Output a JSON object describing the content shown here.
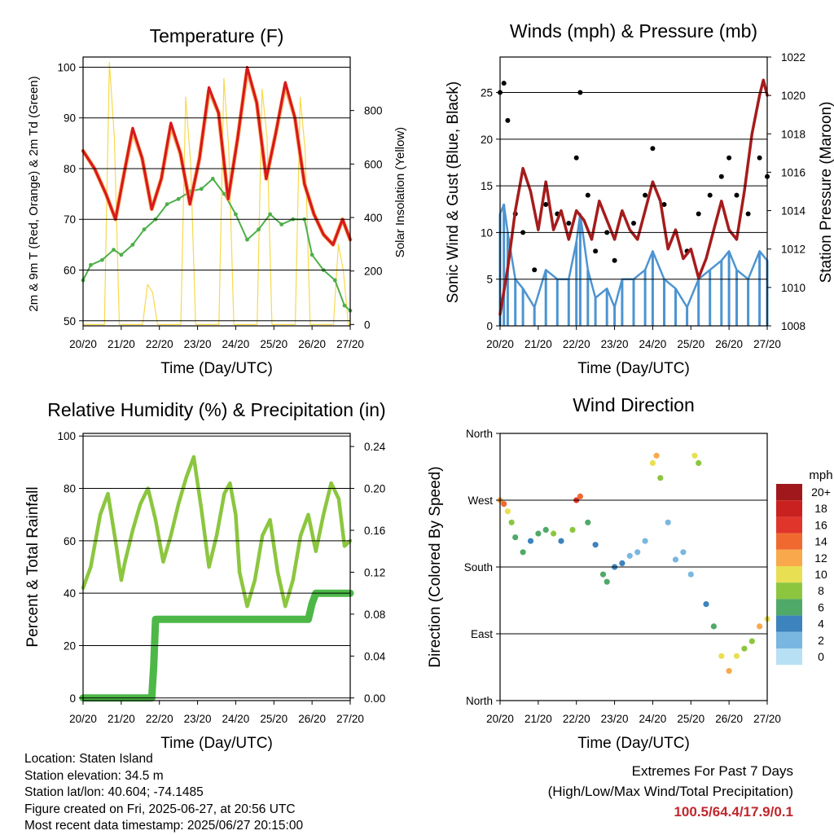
{
  "colors": {
    "temp2m": "#d7191c",
    "temp9m": "#fdae61",
    "dewpoint": "#4daf4a",
    "solar": "#f7d94c",
    "wind": "#4d94d1",
    "gust": "#000000",
    "pressure": "#a51c1c",
    "rh": "#8cc63f",
    "precip": "#4db848",
    "extremes": "#c0272d"
  },
  "panels": {
    "temperature": {
      "title": "Temperature (F)",
      "xlabel": "Time (Day/UTC)",
      "ylabel_left": "2m & 9m T (Red, Orange) & 2m Td (Green)",
      "ylabel_right": "Solar Insolation (Yellow)"
    },
    "winds": {
      "title": "Winds (mph) & Pressure (mb)",
      "xlabel": "Time (Day/UTC)",
      "ylabel_left": "Sonic Wind & Gust (Blue, Black)",
      "ylabel_right": "Station Pressure (Maroon)"
    },
    "humidity": {
      "title": "Relative Humidity (%) & Precipitation (in)",
      "xlabel": "Time (Day/UTC)",
      "ylabel_left": "Percent & Total Rainfall"
    },
    "direction": {
      "title": "Wind Direction",
      "xlabel": "Time (Day/UTC)",
      "ylabel_left": "Direction (Colored By Speed)",
      "legend_title": "mph"
    }
  },
  "chart_data": [
    {
      "type": "line",
      "title": "Temperature (F)",
      "xlabel": "Time (Day/UTC)",
      "ylabel": "2m & 9m T (Red, Orange) & 2m Td (Green)",
      "y2label": "Solar Insolation (Yellow)",
      "x_ticks": [
        "20/20",
        "21/20",
        "22/20",
        "23/20",
        "24/20",
        "25/20",
        "26/20",
        "27/20"
      ],
      "xlim": [
        0,
        7
      ],
      "ylim": [
        49,
        102
      ],
      "y_ticks": [
        50,
        60,
        70,
        80,
        90,
        100
      ],
      "y2lim": [
        -5,
        1000
      ],
      "y2_ticks": [
        0,
        200,
        400,
        600,
        800
      ],
      "grid": "horizontal",
      "series": [
        {
          "name": "2m T",
          "x": [
            0,
            0.3,
            0.6,
            0.85,
            1.1,
            1.3,
            1.55,
            1.8,
            2.05,
            2.3,
            2.55,
            2.8,
            3.05,
            3.3,
            3.55,
            3.8,
            4.05,
            4.3,
            4.55,
            4.8,
            5.05,
            5.3,
            5.55,
            5.8,
            6.05,
            6.3,
            6.55,
            6.8,
            6.9,
            7
          ],
          "y": [
            83.5,
            80,
            75,
            70,
            80,
            88,
            82,
            72,
            78,
            89,
            83,
            73,
            82,
            96,
            91,
            74,
            86,
            100,
            93,
            78,
            87,
            97,
            90,
            77,
            71,
            67,
            65,
            70,
            68,
            66
          ]
        },
        {
          "name": "9m T",
          "x": [
            0,
            0.3,
            0.6,
            0.85,
            1.1,
            1.3,
            1.55,
            1.8,
            2.05,
            2.3,
            2.55,
            2.8,
            3.05,
            3.3,
            3.55,
            3.8,
            4.05,
            4.3,
            4.55,
            4.8,
            5.05,
            5.3,
            5.55,
            5.8,
            6.05,
            6.3,
            6.55,
            6.8,
            6.9,
            7
          ],
          "y": [
            83.5,
            80,
            75,
            70,
            80,
            87.5,
            82,
            72,
            78,
            88.5,
            83,
            73,
            82,
            95.5,
            91,
            74,
            86,
            99.5,
            93,
            78,
            87,
            96.5,
            90,
            77,
            71,
            67,
            65,
            70,
            68,
            66
          ]
        },
        {
          "name": "2m Td",
          "x": [
            0,
            0.2,
            0.5,
            0.8,
            1.0,
            1.3,
            1.6,
            1.9,
            2.2,
            2.5,
            2.8,
            3.1,
            3.4,
            3.7,
            4.0,
            4.3,
            4.6,
            4.9,
            5.2,
            5.5,
            5.8,
            6.0,
            6.3,
            6.6,
            6.85,
            7
          ],
          "y": [
            58,
            61,
            62,
            64,
            63,
            65,
            68,
            70,
            73,
            74,
            75.5,
            76,
            78,
            75,
            71,
            66,
            68,
            71,
            69,
            70,
            70,
            63,
            60,
            58,
            53,
            52
          ]
        },
        {
          "name": "Solar Insolation",
          "axis": "y2",
          "x": [
            0,
            0.56,
            0.69,
            0.82,
            0.95,
            1.56,
            1.69,
            1.82,
            1.95,
            2.56,
            2.69,
            2.82,
            2.95,
            3.56,
            3.69,
            3.82,
            3.95,
            4.56,
            4.69,
            4.82,
            4.95,
            5.56,
            5.69,
            5.82,
            5.95,
            6.56,
            6.69,
            6.82,
            6.95,
            7
          ],
          "y": [
            0,
            0,
            980,
            700,
            0,
            0,
            150,
            120,
            0,
            0,
            850,
            600,
            0,
            0,
            920,
            650,
            0,
            0,
            880,
            700,
            0,
            0,
            850,
            650,
            0,
            0,
            300,
            200,
            0,
            0
          ]
        }
      ]
    },
    {
      "type": "scatter",
      "title": "Winds (mph) & Pressure (mb)",
      "xlabel": "Time (Day/UTC)",
      "ylabel": "Sonic Wind & Gust (Blue, Black)",
      "y2label": "Station Pressure (Maroon)",
      "x_ticks": [
        "20/20",
        "21/20",
        "22/20",
        "23/20",
        "24/20",
        "25/20",
        "26/20",
        "27/20"
      ],
      "xlim": [
        0,
        7
      ],
      "ylim": [
        0,
        28.8
      ],
      "y_ticks": [
        0,
        5,
        10,
        15,
        20,
        25
      ],
      "y2lim": [
        1008,
        1022
      ],
      "y2_ticks": [
        1008,
        1010,
        1012,
        1014,
        1016,
        1018,
        1020,
        1022
      ],
      "grid": "horizontal",
      "series": [
        {
          "name": "Gust",
          "x": [
            0,
            0.1,
            0.2,
            0.4,
            0.6,
            0.9,
            1.2,
            1.5,
            1.8,
            2.0,
            2.1,
            2.3,
            2.5,
            2.8,
            3.0,
            3.2,
            3.5,
            3.8,
            4.0,
            4.3,
            4.6,
            4.9,
            5.2,
            5.5,
            5.8,
            6.0,
            6.2,
            6.5,
            6.8,
            7
          ],
          "y": [
            25,
            26,
            22,
            12,
            10,
            6,
            13,
            12,
            11,
            18,
            25,
            14,
            8,
            10,
            7,
            12,
            11,
            14,
            19,
            13,
            10,
            8,
            12,
            14,
            16,
            18,
            14,
            12,
            18,
            16
          ]
        },
        {
          "name": "Sonic Wind",
          "x": [
            0,
            0.1,
            0.2,
            0.4,
            0.6,
            0.9,
            1.2,
            1.5,
            1.8,
            2.0,
            2.1,
            2.3,
            2.5,
            2.8,
            3.0,
            3.2,
            3.5,
            3.8,
            4.0,
            4.3,
            4.6,
            4.9,
            5.2,
            5.5,
            5.8,
            6.0,
            6.2,
            6.5,
            6.8,
            7
          ],
          "y": [
            12,
            13,
            10,
            5,
            4,
            2,
            6,
            5,
            5,
            9,
            12,
            6,
            3,
            4,
            2,
            5,
            5,
            6,
            8,
            5,
            4,
            2,
            5,
            6,
            7,
            8,
            6,
            5,
            8,
            7
          ]
        },
        {
          "name": "Station Pressure",
          "axis": "y2",
          "x": [
            0,
            0.2,
            0.4,
            0.6,
            0.8,
            1.0,
            1.2,
            1.4,
            1.6,
            1.8,
            2.0,
            2.2,
            2.4,
            2.6,
            2.8,
            3.0,
            3.2,
            3.4,
            3.6,
            3.8,
            4.0,
            4.2,
            4.4,
            4.6,
            4.8,
            5.0,
            5.2,
            5.4,
            5.6,
            5.8,
            6.0,
            6.2,
            6.4,
            6.6,
            6.8,
            6.9,
            7
          ],
          "y": [
            1008.6,
            1011,
            1014,
            1016.2,
            1015,
            1013,
            1015.5,
            1013,
            1014,
            1012.5,
            1014,
            1013.5,
            1012.5,
            1014.5,
            1013.5,
            1012.5,
            1014,
            1013,
            1012.5,
            1014,
            1015.5,
            1014.5,
            1012,
            1013,
            1011.5,
            1012,
            1010.5,
            1011.5,
            1013,
            1014.5,
            1013,
            1012.5,
            1015,
            1018,
            1020,
            1020.8,
            1020
          ]
        }
      ]
    },
    {
      "type": "line",
      "title": "Relative Humidity (%) & Precipitation (in)",
      "xlabel": "Time (Day/UTC)",
      "ylabel": "Percent & Total Rainfall",
      "x_ticks": [
        "20/20",
        "21/20",
        "22/20",
        "23/20",
        "24/20",
        "25/20",
        "26/20",
        "27/20"
      ],
      "xlim": [
        0,
        7
      ],
      "ylim": [
        -1,
        101
      ],
      "y_ticks": [
        0,
        20,
        40,
        60,
        80,
        100
      ],
      "y2lim": [
        -0.0025,
        0.2525
      ],
      "y2_ticks": [
        "0.00",
        "0.04",
        "0.08",
        "0.12",
        "0.16",
        "0.20",
        "0.24"
      ],
      "grid": "horizontal",
      "series": [
        {
          "name": "Relative Humidity",
          "x": [
            0,
            0.2,
            0.45,
            0.65,
            0.85,
            1.0,
            1.1,
            1.3,
            1.5,
            1.7,
            1.9,
            2.1,
            2.3,
            2.5,
            2.7,
            2.9,
            3.1,
            3.3,
            3.5,
            3.7,
            3.85,
            4.0,
            4.1,
            4.3,
            4.5,
            4.7,
            4.9,
            5.1,
            5.3,
            5.5,
            5.7,
            5.9,
            6.1,
            6.3,
            6.5,
            6.7,
            6.85,
            7
          ],
          "y": [
            42,
            50,
            70,
            78,
            60,
            45,
            52,
            64,
            74,
            80,
            68,
            52,
            62,
            74,
            84,
            92,
            72,
            50,
            62,
            78,
            82,
            70,
            48,
            35,
            45,
            62,
            68,
            48,
            35,
            45,
            62,
            70,
            56,
            70,
            82,
            76,
            58,
            60
          ]
        },
        {
          "name": "Total Rainfall",
          "axis": "y2",
          "x": [
            0,
            1.0,
            1.8,
            1.85,
            1.9,
            2.0,
            3.0,
            4.0,
            5.0,
            5.9,
            6.0,
            6.1,
            6.5,
            7
          ],
          "y": [
            0,
            0,
            0,
            0.03,
            0.075,
            0.075,
            0.075,
            0.075,
            0.075,
            0.075,
            0.09,
            0.1,
            0.1,
            0.1
          ]
        }
      ]
    },
    {
      "type": "scatter",
      "title": "Wind Direction",
      "xlabel": "Time (Day/UTC)",
      "ylabel": "Direction (Colored By Speed)",
      "x_ticks": [
        "20/20",
        "21/20",
        "22/20",
        "23/20",
        "24/20",
        "25/20",
        "26/20",
        "27/20"
      ],
      "xlim": [
        0,
        7
      ],
      "y_ticks": [
        "North",
        "East",
        "South",
        "West",
        "North"
      ],
      "y_tick_values": [
        0,
        90,
        180,
        270,
        360
      ],
      "ylim": [
        0,
        360
      ],
      "grid": "horizontal",
      "legend": {
        "title": "mph",
        "position": "right",
        "labels": [
          "20+",
          "18",
          "16",
          "14",
          "12",
          "10",
          "8",
          "6",
          "4",
          "2",
          "0"
        ],
        "colors": [
          "#a0171c",
          "#c8211f",
          "#e0352a",
          "#f06a2f",
          "#f9a94b",
          "#e8df53",
          "#8cc63f",
          "#4fa968",
          "#3d83be",
          "#79b7e0",
          "#b8e0f4"
        ]
      },
      "series": [
        {
          "name": "Direction",
          "x": [
            0,
            0.1,
            0.2,
            0.3,
            0.4,
            0.6,
            0.8,
            1.0,
            1.2,
            1.4,
            1.6,
            1.9,
            2.0,
            2.1,
            2.3,
            2.5,
            2.7,
            2.8,
            3.0,
            3.2,
            3.4,
            3.6,
            3.8,
            4.0,
            4.1,
            4.2,
            4.4,
            4.6,
            4.8,
            5.0,
            5.1,
            5.2,
            5.4,
            5.6,
            5.8,
            6.0,
            6.2,
            6.4,
            6.6,
            6.8,
            7
          ],
          "y": [
            270,
            265,
            255,
            240,
            220,
            200,
            215,
            225,
            230,
            225,
            215,
            230,
            270,
            275,
            240,
            210,
            170,
            160,
            180,
            185,
            195,
            200,
            215,
            320,
            330,
            300,
            240,
            190,
            200,
            170,
            330,
            320,
            130,
            100,
            60,
            40,
            60,
            70,
            80,
            100,
            110
          ],
          "speed": [
            12,
            14,
            11,
            9,
            7,
            6,
            5,
            6,
            7,
            8,
            5,
            9,
            16,
            14,
            6,
            5,
            7,
            6,
            5,
            4,
            3,
            3,
            2,
            11,
            12,
            9,
            2,
            2,
            3,
            3,
            10,
            9,
            4,
            6,
            10,
            12,
            10,
            8,
            9,
            12,
            10
          ]
        }
      ]
    }
  ],
  "info": {
    "location": "Location: Staten Island",
    "elevation": "Station elevation: 34.5 m",
    "latlon": "Station lat/lon: 40.604; -74.1485",
    "created": "Figure created on Fri, 2025-06-27, at 20:56 UTC",
    "timestamp": "Most recent data timestamp: 2025/06/27 20:15:00"
  },
  "extremes": {
    "line1": "Extremes For Past 7 Days",
    "line2": "(High/Low/Max Wind/Total Precipitation)",
    "values": "100.5/64.4/17.9/0.1"
  }
}
